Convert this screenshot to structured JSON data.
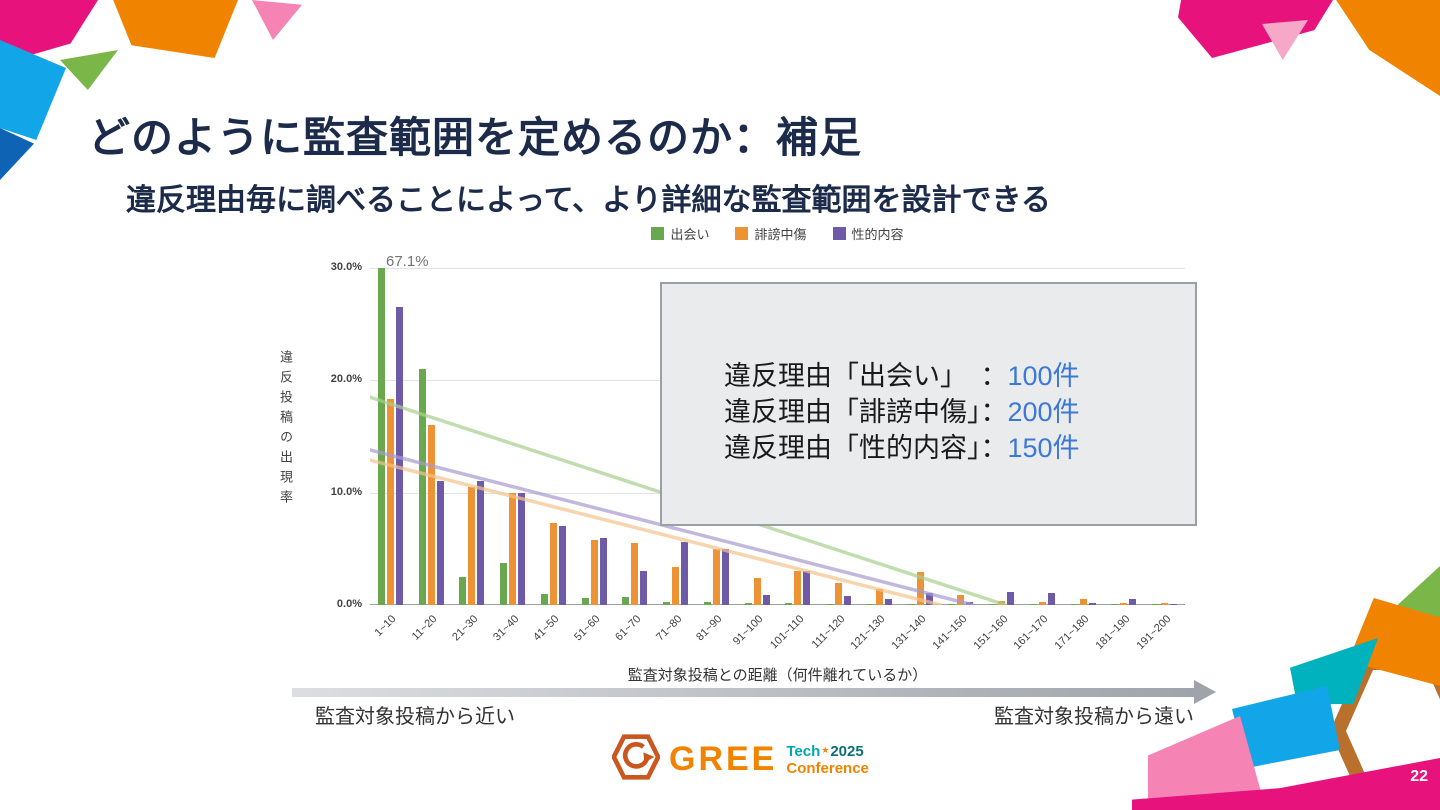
{
  "slide": {
    "title": "どのように監査範囲を定めるのか：補足",
    "subtitle": "違反理由毎に調べることによって、より詳細な監査範囲を設計できる",
    "page_number": "22"
  },
  "chart_data": {
    "type": "bar",
    "title": "",
    "ylabel": "違反投稿の出現率",
    "xlabel": "監査対象投稿との距離（何件離れているか）",
    "ylim": [
      0,
      30
    ],
    "yticks": [
      30,
      20,
      10,
      0
    ],
    "ytick_labels": [
      "30.0%",
      "20.0%",
      "10.0%",
      "0.0%"
    ],
    "annotation": "67.1%",
    "legend_position": "top",
    "grid": true,
    "categories": [
      "1~10",
      "11~20",
      "21~30",
      "31~40",
      "41~50",
      "51~60",
      "61~70",
      "71~80",
      "81~90",
      "91~100",
      "101~110",
      "111~120",
      "121~130",
      "131~140",
      "141~150",
      "151~160",
      "161~170",
      "171~180",
      "181~190",
      "191~200"
    ],
    "series": [
      {
        "name": "出会い",
        "color": "#6aa84f",
        "values": [
          67.1,
          21.0,
          2.5,
          3.7,
          1.0,
          0.6,
          0.7,
          0.3,
          0.3,
          0.2,
          0.2,
          0.1,
          0.1,
          0.1,
          0.05,
          0.05,
          0.05,
          0.05,
          0.02,
          0.02
        ]
      },
      {
        "name": "誹謗中傷",
        "color": "#ed9335",
        "values": [
          18.3,
          16.0,
          10.5,
          10.0,
          7.3,
          5.8,
          5.5,
          3.4,
          5.0,
          2.4,
          3.0,
          2.0,
          1.4,
          2.9,
          0.9,
          0.4,
          0.3,
          0.5,
          0.2,
          0.15
        ]
      },
      {
        "name": "性的内容",
        "color": "#6f5aa8",
        "values": [
          26.5,
          11.0,
          11.0,
          10.0,
          7.0,
          6.0,
          3.0,
          5.6,
          5.0,
          0.9,
          3.0,
          0.8,
          0.5,
          1.1,
          0.3,
          1.2,
          1.1,
          0.2,
          0.5,
          0.1
        ]
      }
    ],
    "trendlines": [
      {
        "series": "出会い",
        "color": "#a8d08d",
        "x1": 0,
        "y1": 18.5,
        "x2": 0.78,
        "y2": 0
      },
      {
        "series": "誹謗中傷",
        "color": "#f6c28b",
        "x1": 0,
        "y1": 12.9,
        "x2": 0.7,
        "y2": 0
      },
      {
        "series": "性的内容",
        "color": "#a99bd0",
        "x1": 0,
        "y1": 13.8,
        "x2": 0.74,
        "y2": 0
      }
    ]
  },
  "overlay": {
    "rows": [
      {
        "label": "違反理由「出会い」　",
        "colon": "：",
        "value": "100件"
      },
      {
        "label": "違反理由「誹謗中傷」",
        "colon": "：",
        "value": "200件"
      },
      {
        "label": "違反理由「性的内容」",
        "colon": "：",
        "value": "150件"
      }
    ],
    "value_color": "#3c78d8"
  },
  "distance_axis": {
    "near_label": "監査対象投稿から近い",
    "far_label": "監査対象投稿から遠い"
  },
  "footer": {
    "logo": {
      "brand": "GREE",
      "line1_tech": "Tech",
      "line1_star": "★",
      "line1_year": "2025",
      "line2": "Conference"
    }
  }
}
